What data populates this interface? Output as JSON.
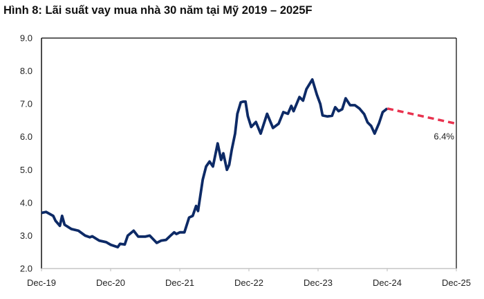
{
  "chart_data": {
    "type": "line",
    "title": "Hình 8: Lãi suất vay mua nhà 30 năm tại Mỹ 2019 – 2025F",
    "xlabel": "",
    "ylabel": "",
    "ylim": [
      2.0,
      9.0
    ],
    "yticks": [
      "2.0",
      "3.0",
      "4.0",
      "5.0",
      "6.0",
      "7.0",
      "8.0",
      "9.0"
    ],
    "xlim": [
      "2019-12-01",
      "2025-12-01"
    ],
    "xticks": [
      "Dec-19",
      "Dec-20",
      "Dec-21",
      "Dec-22",
      "Dec-23",
      "Dec-24",
      "Dec-25"
    ],
    "grid": false,
    "colors": {
      "actual": "#0d2a66",
      "forecast": "#e8334f"
    },
    "series": [
      {
        "style": "solid",
        "points": [
          [
            "2019-12-01",
            3.69
          ],
          [
            "2019-12-25",
            3.72
          ],
          [
            "2020-02-01",
            3.6
          ],
          [
            "2020-02-13",
            3.45
          ],
          [
            "2020-03-07",
            3.3
          ],
          [
            "2020-03-19",
            3.6
          ],
          [
            "2020-04-01",
            3.33
          ],
          [
            "2020-05-07",
            3.2
          ],
          [
            "2020-06-13",
            3.15
          ],
          [
            "2020-07-19",
            3.0
          ],
          [
            "2020-08-13",
            2.95
          ],
          [
            "2020-08-25",
            2.98
          ],
          [
            "2020-10-01",
            2.85
          ],
          [
            "2020-11-07",
            2.8
          ],
          [
            "2020-12-01",
            2.72
          ],
          [
            "2021-01-07",
            2.65
          ],
          [
            "2021-01-19",
            2.75
          ],
          [
            "2021-02-13",
            2.73
          ],
          [
            "2021-03-01",
            3.0
          ],
          [
            "2021-04-01",
            3.15
          ],
          [
            "2021-04-25",
            2.97
          ],
          [
            "2021-06-01",
            2.97
          ],
          [
            "2021-06-25",
            3.0
          ],
          [
            "2021-08-01",
            2.78
          ],
          [
            "2021-08-25",
            2.85
          ],
          [
            "2021-09-19",
            2.87
          ],
          [
            "2021-10-13",
            3.0
          ],
          [
            "2021-11-01",
            3.1
          ],
          [
            "2021-11-13",
            3.05
          ],
          [
            "2021-12-01",
            3.1
          ],
          [
            "2021-12-25",
            3.1
          ],
          [
            "2022-01-19",
            3.55
          ],
          [
            "2022-02-07",
            3.6
          ],
          [
            "2022-02-25",
            3.9
          ],
          [
            "2022-03-07",
            3.75
          ],
          [
            "2022-04-01",
            4.7
          ],
          [
            "2022-04-19",
            5.1
          ],
          [
            "2022-05-07",
            5.25
          ],
          [
            "2022-05-25",
            5.1
          ],
          [
            "2022-06-19",
            5.8
          ],
          [
            "2022-07-07",
            5.3
          ],
          [
            "2022-07-19",
            5.5
          ],
          [
            "2022-08-07",
            5.0
          ],
          [
            "2022-08-19",
            5.15
          ],
          [
            "2022-09-01",
            5.6
          ],
          [
            "2022-09-19",
            6.1
          ],
          [
            "2022-10-01",
            6.7
          ],
          [
            "2022-10-19",
            7.05
          ],
          [
            "2022-11-01",
            7.07
          ],
          [
            "2022-11-13",
            7.07
          ],
          [
            "2022-11-25",
            6.63
          ],
          [
            "2022-12-13",
            6.3
          ],
          [
            "2023-01-07",
            6.45
          ],
          [
            "2023-02-01",
            6.1
          ],
          [
            "2023-03-07",
            6.7
          ],
          [
            "2023-04-07",
            6.27
          ],
          [
            "2023-05-07",
            6.4
          ],
          [
            "2023-06-01",
            6.75
          ],
          [
            "2023-06-25",
            6.7
          ],
          [
            "2023-07-13",
            6.94
          ],
          [
            "2023-07-25",
            6.78
          ],
          [
            "2023-08-25",
            7.21
          ],
          [
            "2023-09-13",
            7.1
          ],
          [
            "2023-10-01",
            7.45
          ],
          [
            "2023-11-01",
            7.74
          ],
          [
            "2023-11-25",
            7.28
          ],
          [
            "2023-12-13",
            7.0
          ],
          [
            "2023-12-25",
            6.65
          ],
          [
            "2024-01-19",
            6.62
          ],
          [
            "2024-02-13",
            6.64
          ],
          [
            "2024-03-01",
            6.9
          ],
          [
            "2024-03-19",
            6.78
          ],
          [
            "2024-04-07",
            6.84
          ],
          [
            "2024-04-25",
            7.17
          ],
          [
            "2024-05-19",
            6.96
          ],
          [
            "2024-06-13",
            6.96
          ],
          [
            "2024-07-07",
            6.86
          ],
          [
            "2024-08-01",
            6.69
          ],
          [
            "2024-08-19",
            6.44
          ],
          [
            "2024-09-07",
            6.33
          ],
          [
            "2024-09-25",
            6.1
          ],
          [
            "2024-10-19",
            6.42
          ],
          [
            "2024-11-07",
            6.75
          ],
          [
            "2024-12-01",
            6.86
          ]
        ]
      },
      {
        "style": "dashed",
        "points": [
          [
            "2024-12-01",
            6.86
          ],
          [
            "2025-12-01",
            6.4
          ]
        ]
      }
    ],
    "annotations": [
      {
        "text": "6.4%",
        "x": "2025-12-01",
        "y": 6.4
      }
    ]
  }
}
